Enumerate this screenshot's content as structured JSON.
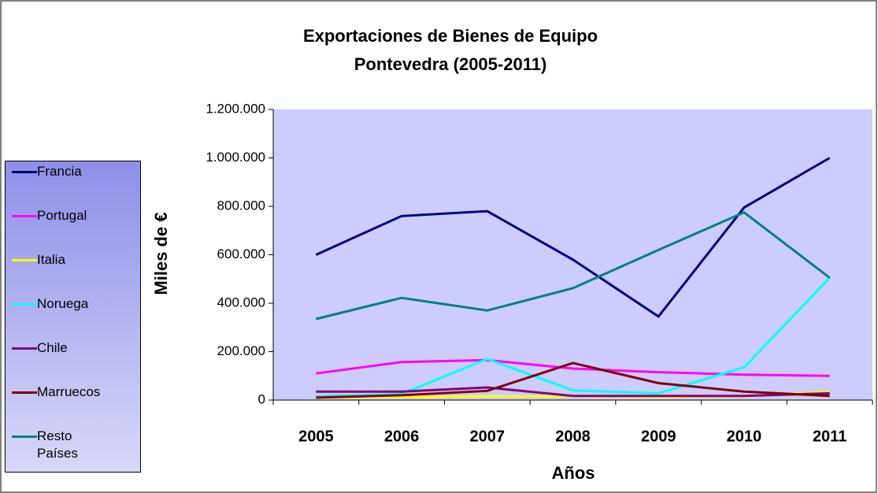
{
  "chart_data": {
    "type": "line",
    "title": "Exportaciones de Bienes de Equipo",
    "subtitle": "Pontevedra (2005-2011)",
    "x_label": "Años",
    "y_label": "Miles de €",
    "categories": [
      "2005",
      "2006",
      "2007",
      "2008",
      "2009",
      "2010",
      "2011"
    ],
    "series": [
      {
        "name": "Francia",
        "color": "#000080",
        "values": [
          600000,
          760000,
          780000,
          580000,
          345000,
          795000,
          1000000
        ]
      },
      {
        "name": "Portugal",
        "color": "#ff00ff",
        "values": [
          110000,
          157000,
          165000,
          130000,
          115000,
          105000,
          100000
        ]
      },
      {
        "name": "Italia",
        "color": "#ffff00",
        "values": [
          10000,
          12000,
          15000,
          15000,
          12000,
          15000,
          35000
        ]
      },
      {
        "name": "Noruega",
        "color": "#00ffff",
        "values": [
          15000,
          25000,
          170000,
          40000,
          28000,
          135000,
          505000
        ]
      },
      {
        "name": "Chile",
        "color": "#800080",
        "values": [
          35000,
          35000,
          52000,
          17000,
          17000,
          17000,
          28000
        ]
      },
      {
        "name": "Marruecos",
        "color": "#800000",
        "values": [
          10000,
          20000,
          38000,
          153000,
          70000,
          35000,
          17000
        ]
      },
      {
        "name": "Resto Países",
        "color": "#008080",
        "values": [
          335000,
          422000,
          370000,
          462000,
          620000,
          775000,
          505000
        ]
      }
    ],
    "ylim": [
      0,
      1200000
    ],
    "yticks": [
      0,
      {
        "value": 200000,
        "label": "200.000"
      },
      {
        "value": 400000,
        "label": "400.000"
      },
      {
        "value": 600000,
        "label": "600.000"
      },
      {
        "value": 800000,
        "label": "800.000"
      },
      {
        "value": 1000000,
        "label": "1.000.000"
      },
      {
        "value": 1200000,
        "label": "1.200.000"
      }
    ],
    "legend": "left"
  }
}
